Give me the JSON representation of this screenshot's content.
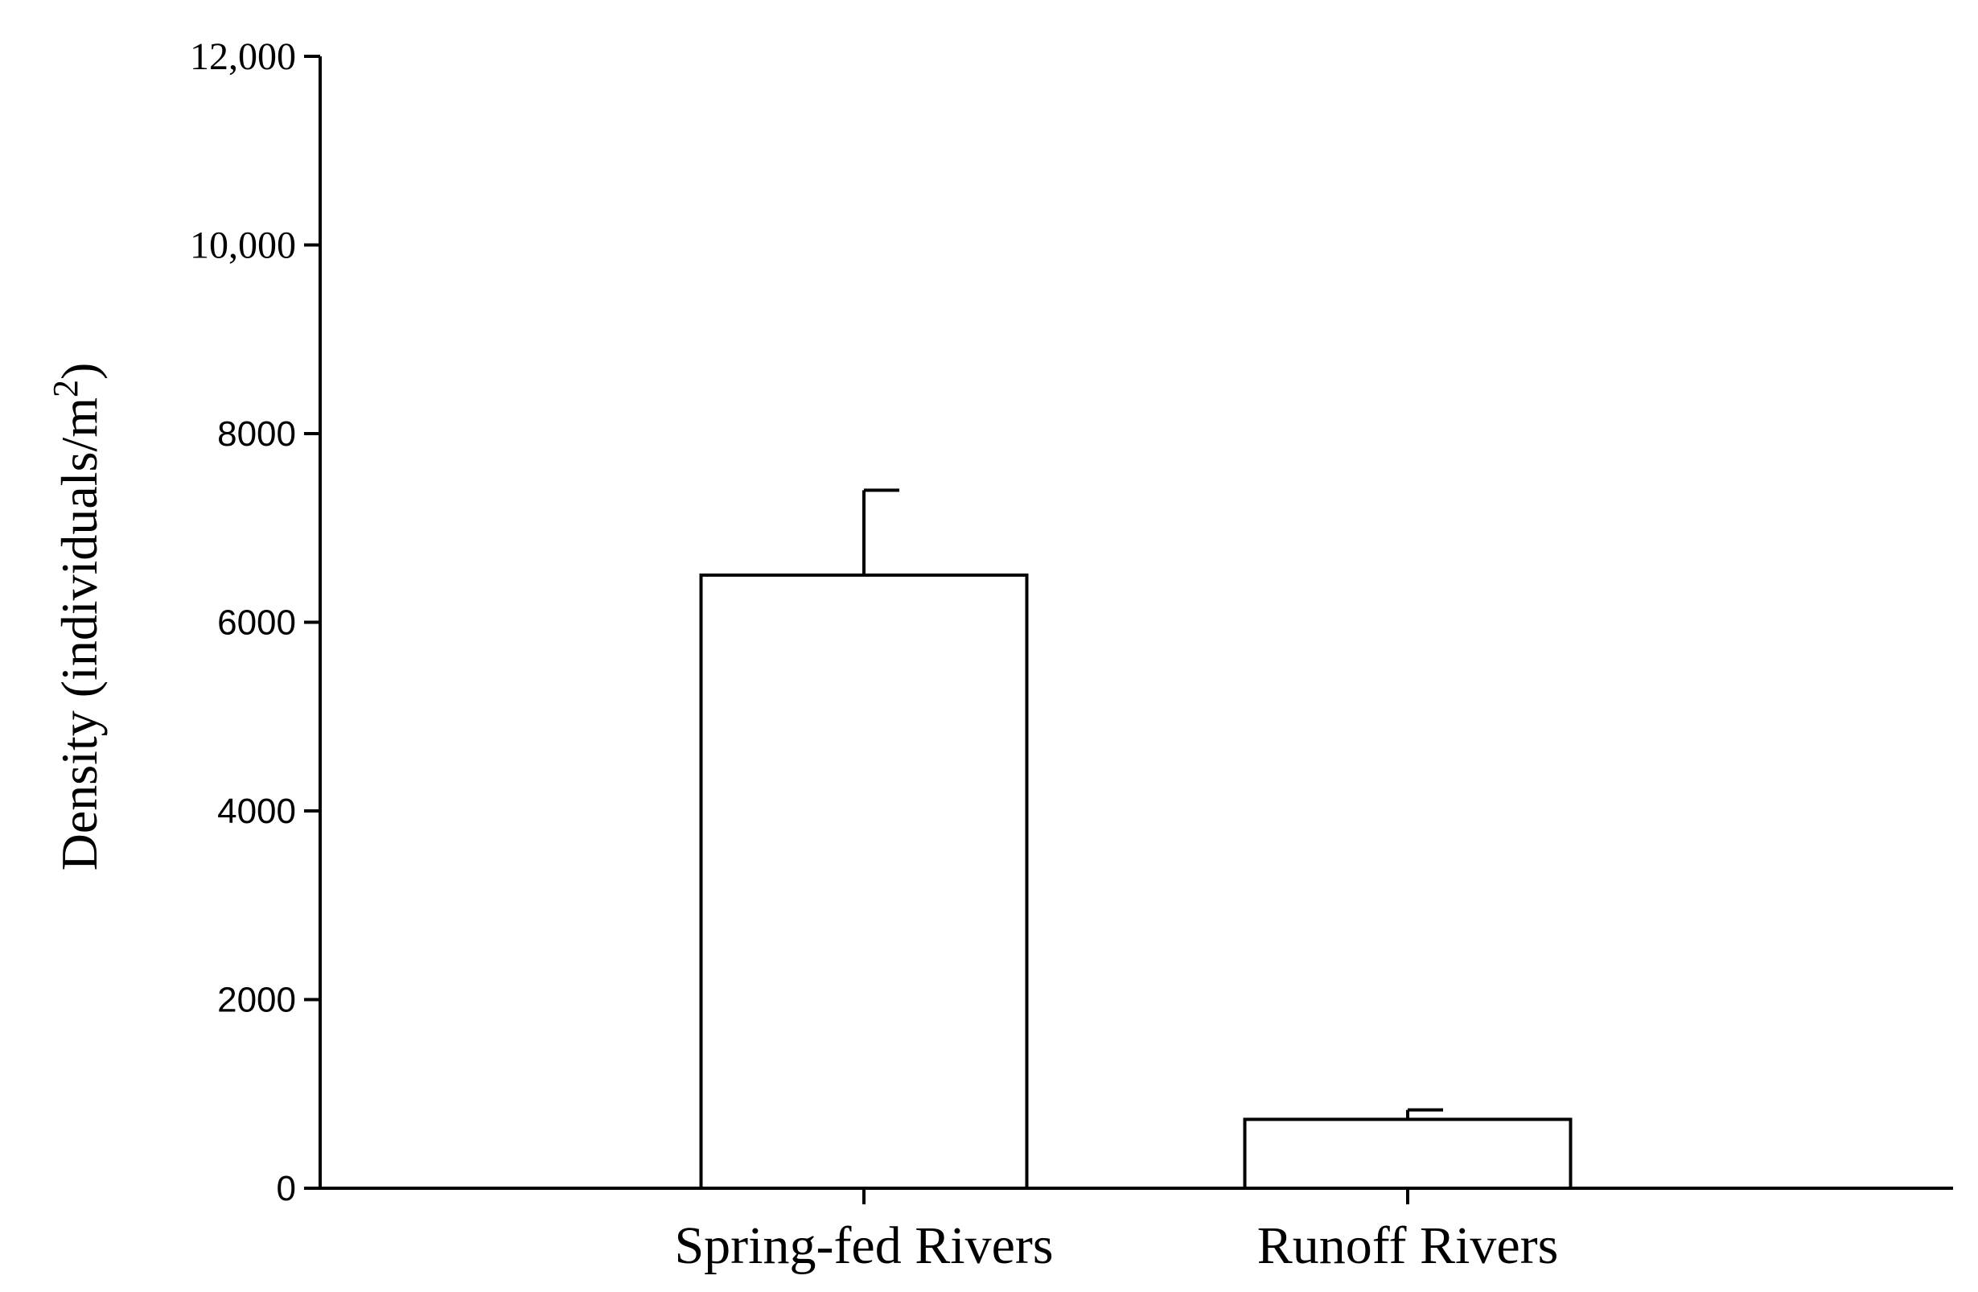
{
  "chart_data": {
    "type": "bar",
    "categories": [
      "Spring-fed Rivers",
      "Runoff Rivers"
    ],
    "values": [
      6500,
      730
    ],
    "error_upper": [
      7400,
      830
    ],
    "ylim": [
      0,
      12000
    ],
    "yticks": [
      0,
      2000,
      4000,
      6000,
      8000,
      10000,
      12000
    ],
    "ytick_labels": [
      "0",
      "2000",
      "4000",
      "6000",
      "8000",
      "10,000",
      "12,000"
    ],
    "ylabel": "Density (individuals/m",
    "ylabel_superscript": "2",
    "ylabel_close": ")",
    "xlabel": "",
    "title": "",
    "grid": false,
    "legend": "none"
  }
}
